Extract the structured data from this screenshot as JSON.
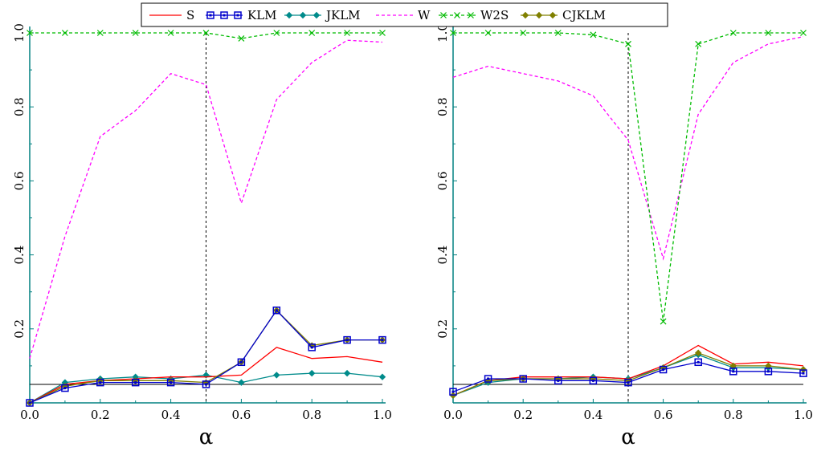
{
  "chart_data": [
    {
      "type": "line",
      "panel": "left",
      "xlabel": "α",
      "ylabel": "",
      "xlim": [
        0,
        1
      ],
      "ylim": [
        0,
        1
      ],
      "xticks": [
        "0.0",
        "0.2",
        "0.4",
        "0.6",
        "0.8",
        "1.0"
      ],
      "yticks": [
        "0.2",
        "0.4",
        "0.6",
        "0.8",
        "1.0"
      ],
      "xticks_values": [
        0,
        0.2,
        0.4,
        0.6,
        0.8,
        1.0
      ],
      "yticks_values": [
        0.2,
        0.4,
        0.6,
        0.8,
        1.0
      ],
      "vline": 0.5,
      "hline": 0.05,
      "x": [
        0,
        0.1,
        0.2,
        0.3,
        0.4,
        0.5,
        0.6,
        0.7,
        0.8,
        0.9,
        1.0
      ],
      "series": [
        {
          "name": "S",
          "color": "#ff0000",
          "dash": "solid",
          "marker": "none",
          "values": [
            0.0,
            0.05,
            0.06,
            0.065,
            0.07,
            0.07,
            0.075,
            0.15,
            0.12,
            0.125,
            0.11
          ]
        },
        {
          "name": "KLM",
          "color": "#0000cc",
          "dash": "solid",
          "marker": "square",
          "values": [
            0.0,
            0.04,
            0.055,
            0.055,
            0.055,
            0.05,
            0.11,
            0.25,
            0.15,
            0.17,
            0.17
          ]
        },
        {
          "name": "JKLM",
          "color": "#008b8b",
          "dash": "solid",
          "marker": "diamond",
          "values": [
            0.0,
            0.055,
            0.065,
            0.07,
            0.065,
            0.075,
            0.055,
            0.075,
            0.08,
            0.08,
            0.07
          ]
        },
        {
          "name": "W",
          "color": "#ff00ff",
          "dash": "dashed",
          "marker": "none",
          "values": [
            0.12,
            0.45,
            0.72,
            0.79,
            0.89,
            0.86,
            0.54,
            0.82,
            0.92,
            0.98,
            0.975
          ]
        },
        {
          "name": "W2S",
          "color": "#00bb00",
          "dash": "dashed",
          "marker": "x",
          "values": [
            1.0,
            1.0,
            1.0,
            1.0,
            1.0,
            1.0,
            0.985,
            1.0,
            1.0,
            1.0,
            1.0
          ]
        },
        {
          "name": "CJKLM",
          "color": "#808000",
          "dash": "solid",
          "marker": "diamond",
          "values": [
            0.0,
            0.045,
            0.06,
            0.06,
            0.06,
            0.055,
            0.11,
            0.25,
            0.155,
            0.17,
            0.17
          ]
        }
      ]
    },
    {
      "type": "line",
      "panel": "right",
      "xlabel": "α",
      "ylabel": "",
      "xlim": [
        0,
        1
      ],
      "ylim": [
        0,
        1
      ],
      "xticks": [
        "0.0",
        "0.2",
        "0.4",
        "0.6",
        "0.8",
        "1.0"
      ],
      "yticks": [
        "0.2",
        "0.4",
        "0.6",
        "0.8",
        "1.0"
      ],
      "xticks_values": [
        0,
        0.2,
        0.4,
        0.6,
        0.8,
        1.0
      ],
      "yticks_values": [
        0.2,
        0.4,
        0.6,
        0.8,
        1.0
      ],
      "vline": 0.5,
      "hline": 0.05,
      "x": [
        0,
        0.1,
        0.2,
        0.3,
        0.4,
        0.5,
        0.6,
        0.7,
        0.8,
        0.9,
        1.0
      ],
      "series": [
        {
          "name": "S",
          "color": "#ff0000",
          "dash": "solid",
          "marker": "none",
          "values": [
            0.02,
            0.06,
            0.07,
            0.07,
            0.07,
            0.065,
            0.1,
            0.155,
            0.105,
            0.11,
            0.1
          ]
        },
        {
          "name": "KLM",
          "color": "#0000cc",
          "dash": "solid",
          "marker": "square",
          "values": [
            0.03,
            0.065,
            0.065,
            0.06,
            0.06,
            0.055,
            0.09,
            0.11,
            0.085,
            0.085,
            0.08
          ]
        },
        {
          "name": "JKLM",
          "color": "#008b8b",
          "dash": "solid",
          "marker": "diamond",
          "values": [
            0.02,
            0.055,
            0.065,
            0.065,
            0.07,
            0.065,
            0.095,
            0.13,
            0.095,
            0.095,
            0.09
          ]
        },
        {
          "name": "W",
          "color": "#ff00ff",
          "dash": "dashed",
          "marker": "none",
          "values": [
            0.88,
            0.91,
            0.89,
            0.87,
            0.83,
            0.71,
            0.39,
            0.78,
            0.92,
            0.97,
            0.99
          ]
        },
        {
          "name": "W2S",
          "color": "#00bb00",
          "dash": "dashed",
          "marker": "x",
          "values": [
            1.0,
            1.0,
            1.0,
            1.0,
            0.995,
            0.97,
            0.22,
            0.97,
            1.0,
            1.0,
            1.0
          ]
        },
        {
          "name": "CJKLM",
          "color": "#808000",
          "dash": "solid",
          "marker": "diamond",
          "values": [
            0.02,
            0.06,
            0.065,
            0.065,
            0.065,
            0.06,
            0.095,
            0.135,
            0.1,
            0.1,
            0.09
          ]
        }
      ]
    }
  ],
  "legend": {
    "placement": "top",
    "entries": [
      {
        "name": "S",
        "color": "#ff0000",
        "dash": "solid",
        "marker": "none"
      },
      {
        "name": "KLM",
        "color": "#0000cc",
        "dash": "solid",
        "marker": "square"
      },
      {
        "name": "JKLM",
        "color": "#008b8b",
        "dash": "solid",
        "marker": "diamond"
      },
      {
        "name": "W",
        "color": "#ff00ff",
        "dash": "dashed",
        "marker": "none"
      },
      {
        "name": "W2S",
        "color": "#00bb00",
        "dash": "dashed",
        "marker": "x"
      },
      {
        "name": "CJKLM",
        "color": "#808000",
        "dash": "solid",
        "marker": "diamond"
      }
    ]
  }
}
